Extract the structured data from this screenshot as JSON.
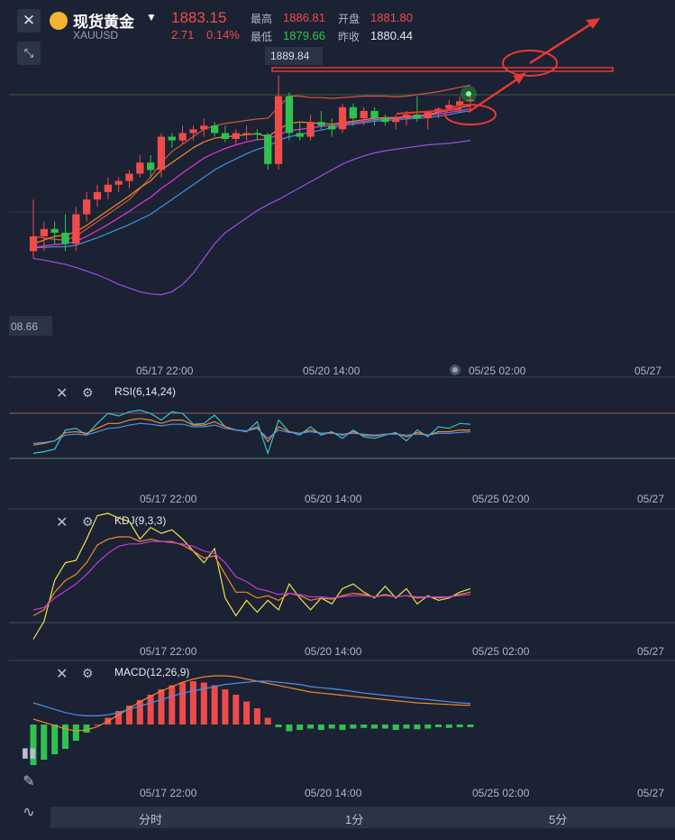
{
  "header": {
    "title": "现货黄金",
    "symbol": "XAUUSD",
    "price": "1883.15",
    "change": "2.71",
    "change_pct": "0.14%",
    "high_label": "最高",
    "high": "1886.81",
    "low_label": "最低",
    "low": "1879.66",
    "open_label": "开盘",
    "open": "1881.80",
    "prev_close_label": "昨收",
    "prev_close": "1880.44"
  },
  "main_chart": {
    "marker_value": "1889.84",
    "left_value": "08.66",
    "time_labels": [
      "05/17 22:00",
      "05/20 14:00",
      "05/25 02:00",
      "05/27"
    ]
  },
  "rsi": {
    "label": "RSI(6,14,24)",
    "time_labels": [
      "05/17 22:00",
      "05/20 14:00",
      "05/25 02:00",
      "05/27"
    ]
  },
  "kdj": {
    "label": "KDJ(9,3,3)",
    "time_labels": [
      "05/17 22:00",
      "05/20 14:00",
      "05/25 02:00",
      "05/27"
    ]
  },
  "macd": {
    "label": "MACD(12,26,9)",
    "time_labels": [
      "05/17 22:00",
      "05/20 14:00",
      "05/25 02:00",
      "05/27"
    ]
  },
  "tabs": [
    "分时",
    "1分",
    "5分"
  ],
  "colors": {
    "up": "#ef4b4b",
    "down": "#2fc24e",
    "background": "#1b2233"
  },
  "chart_data": {
    "type": "candlestick",
    "candles": [
      {
        "o": 1866,
        "h": 1873,
        "l": 1865,
        "c": 1868
      },
      {
        "o": 1868,
        "h": 1870,
        "l": 1866,
        "c": 1869
      },
      {
        "o": 1869,
        "h": 1870,
        "l": 1867,
        "c": 1868.5
      },
      {
        "o": 1868.5,
        "h": 1871,
        "l": 1866,
        "c": 1867
      },
      {
        "o": 1867,
        "h": 1872,
        "l": 1866,
        "c": 1871
      },
      {
        "o": 1871,
        "h": 1874,
        "l": 1870,
        "c": 1873
      },
      {
        "o": 1873,
        "h": 1875,
        "l": 1872,
        "c": 1874
      },
      {
        "o": 1874,
        "h": 1876,
        "l": 1873,
        "c": 1875
      },
      {
        "o": 1875,
        "h": 1876,
        "l": 1874,
        "c": 1875.5
      },
      {
        "o": 1875.5,
        "h": 1877,
        "l": 1874.5,
        "c": 1876.5
      },
      {
        "o": 1876.5,
        "h": 1879,
        "l": 1876,
        "c": 1878
      },
      {
        "o": 1878,
        "h": 1879,
        "l": 1876,
        "c": 1877
      },
      {
        "o": 1877,
        "h": 1882,
        "l": 1876,
        "c": 1881.5
      },
      {
        "o": 1881.5,
        "h": 1882,
        "l": 1880,
        "c": 1881
      },
      {
        "o": 1881,
        "h": 1883,
        "l": 1880.5,
        "c": 1882
      },
      {
        "o": 1882,
        "h": 1883,
        "l": 1881,
        "c": 1882.5
      },
      {
        "o": 1882.5,
        "h": 1884,
        "l": 1881.5,
        "c": 1883
      },
      {
        "o": 1883,
        "h": 1883.5,
        "l": 1881.5,
        "c": 1882
      },
      {
        "o": 1882,
        "h": 1883,
        "l": 1880.8,
        "c": 1881.2
      },
      {
        "o": 1881.2,
        "h": 1882.5,
        "l": 1880.5,
        "c": 1882
      },
      {
        "o": 1882,
        "h": 1883,
        "l": 1881,
        "c": 1882
      },
      {
        "o": 1882,
        "h": 1882.5,
        "l": 1881,
        "c": 1881.8
      },
      {
        "o": 1881.8,
        "h": 1882,
        "l": 1877,
        "c": 1877.8
      },
      {
        "o": 1877.8,
        "h": 1889.8,
        "l": 1877,
        "c": 1887
      },
      {
        "o": 1887,
        "h": 1887.5,
        "l": 1881,
        "c": 1882
      },
      {
        "o": 1882,
        "h": 1883.5,
        "l": 1881,
        "c": 1881.5
      },
      {
        "o": 1881.5,
        "h": 1884.5,
        "l": 1881,
        "c": 1883.5
      },
      {
        "o": 1883.5,
        "h": 1885,
        "l": 1882.5,
        "c": 1883
      },
      {
        "o": 1883,
        "h": 1884,
        "l": 1881.5,
        "c": 1882.5
      },
      {
        "o": 1882.5,
        "h": 1886,
        "l": 1882,
        "c": 1885.5
      },
      {
        "o": 1885.5,
        "h": 1886,
        "l": 1883,
        "c": 1884
      },
      {
        "o": 1884,
        "h": 1885.5,
        "l": 1883,
        "c": 1885
      },
      {
        "o": 1885,
        "h": 1885.5,
        "l": 1883,
        "c": 1884
      },
      {
        "o": 1884,
        "h": 1884.5,
        "l": 1883,
        "c": 1883.5
      },
      {
        "o": 1883.5,
        "h": 1884.5,
        "l": 1882.5,
        "c": 1884
      },
      {
        "o": 1884,
        "h": 1885,
        "l": 1883,
        "c": 1884.5
      },
      {
        "o": 1884.5,
        "h": 1887,
        "l": 1883.5,
        "c": 1884
      },
      {
        "o": 1884,
        "h": 1885,
        "l": 1882.5,
        "c": 1884.8
      },
      {
        "o": 1884.8,
        "h": 1885.5,
        "l": 1884,
        "c": 1885.3
      },
      {
        "o": 1885.3,
        "h": 1886.5,
        "l": 1885,
        "c": 1885.8
      },
      {
        "o": 1885.8,
        "h": 1887,
        "l": 1885.5,
        "c": 1886.3
      },
      {
        "o": 1886.3,
        "h": 1887,
        "l": 1885,
        "c": 1886.5
      }
    ],
    "boll_upper": [
      1868,
      1867.8,
      1867.6,
      1867.5,
      1868,
      1869,
      1870,
      1871,
      1872,
      1873,
      1874.5,
      1876,
      1878,
      1879.5,
      1880.5,
      1881.5,
      1882.5,
      1883,
      1883.3,
      1883.5,
      1883.7,
      1883.9,
      1884,
      1885.5,
      1887,
      1887,
      1886.8,
      1886.8,
      1886.7,
      1886.8,
      1886.9,
      1887,
      1887,
      1887,
      1886.9,
      1887,
      1887.2,
      1887.4,
      1887.6,
      1887.9,
      1888.2,
      1888.5
    ],
    "boll_mid": [
      1866.5,
      1866.5,
      1866.6,
      1866.6,
      1866.8,
      1867.3,
      1867.8,
      1868.4,
      1869,
      1869.6,
      1870.3,
      1871,
      1872,
      1873,
      1874,
      1875,
      1876,
      1877,
      1877.8,
      1878.5,
      1879.2,
      1879.8,
      1880.2,
      1881,
      1881.5,
      1881.8,
      1882.1,
      1882.4,
      1882.7,
      1883,
      1883.2,
      1883.4,
      1883.6,
      1883.7,
      1883.8,
      1883.9,
      1884,
      1884.1,
      1884.3,
      1884.5,
      1884.8,
      1885
    ],
    "boll_lower": [
      1865,
      1864.8,
      1864.5,
      1864.2,
      1863.8,
      1863.3,
      1862.8,
      1862.2,
      1861.5,
      1861,
      1860.5,
      1860.2,
      1860.1,
      1860.5,
      1861.5,
      1863,
      1865,
      1867,
      1868.5,
      1869.5,
      1870.5,
      1871.5,
      1872.3,
      1873,
      1873.8,
      1874.6,
      1875.4,
      1876.2,
      1877,
      1877.8,
      1878.4,
      1878.9,
      1879.3,
      1879.6,
      1879.8,
      1880,
      1880.2,
      1880.4,
      1880.5,
      1880.6,
      1880.8,
      1881
    ],
    "ma_orange": [
      1867,
      1867.5,
      1868,
      1868.2,
      1868.6,
      1869.5,
      1870.5,
      1871.5,
      1872.5,
      1873.5,
      1874.6,
      1875.5,
      1877,
      1878,
      1879,
      1880,
      1880.8,
      1881.3,
      1881.5,
      1881.6,
      1881.8,
      1881.9,
      1881.5,
      1882.5,
      1883.3,
      1883.5,
      1883.4,
      1883.3,
      1883.2,
      1883.4,
      1883.6,
      1883.8,
      1884,
      1884.1,
      1884.1,
      1884.2,
      1884.3,
      1884.5,
      1884.8,
      1885.1,
      1885.4,
      1885.7
    ],
    "ma_magenta": [
      1866.5,
      1866.7,
      1866.9,
      1867,
      1867.3,
      1868,
      1868.8,
      1869.6,
      1870.5,
      1871.4,
      1872.4,
      1873.3,
      1874.5,
      1875.5,
      1876.6,
      1877.6,
      1878.6,
      1879.3,
      1879.9,
      1880.4,
      1880.8,
      1881.1,
      1881.2,
      1881.8,
      1882.3,
      1882.5,
      1882.7,
      1882.9,
      1883,
      1883.2,
      1883.4,
      1883.6,
      1883.8,
      1883.9,
      1884,
      1884.1,
      1884.2,
      1884.4,
      1884.6,
      1884.8,
      1885,
      1885.3
    ],
    "rsi_lines": [
      [
        30,
        32,
        35,
        58,
        60,
        52,
        66,
        78,
        75,
        80,
        82,
        78,
        70,
        80,
        78,
        65,
        66,
        76,
        62,
        58,
        56,
        68,
        30,
        70,
        56,
        52,
        62,
        52,
        56,
        48,
        58,
        50,
        48,
        52,
        55,
        45,
        58,
        50,
        62,
        60,
        66,
        65
      ],
      [
        40,
        42,
        45,
        55,
        56,
        54,
        60,
        66,
        66,
        70,
        72,
        70,
        66,
        70,
        70,
        64,
        64,
        68,
        62,
        58,
        57,
        62,
        44,
        62,
        56,
        54,
        58,
        54,
        55,
        52,
        56,
        52,
        51,
        53,
        54,
        50,
        55,
        52,
        56,
        56,
        58,
        58
      ],
      [
        42,
        43,
        45,
        52,
        53,
        52,
        56,
        60,
        61,
        64,
        66,
        65,
        63,
        65,
        65,
        62,
        62,
        64,
        60,
        58,
        57,
        60,
        48,
        58,
        55,
        54,
        56,
        54,
        54,
        53,
        54,
        53,
        52,
        53,
        53,
        52,
        53,
        52,
        54,
        54,
        55,
        56
      ]
    ],
    "kdj_lines": {
      "j": [
        5,
        20,
        55,
        70,
        72,
        90,
        110,
        112,
        108,
        105,
        90,
        100,
        95,
        98,
        90,
        80,
        70,
        82,
        40,
        25,
        38,
        28,
        38,
        30,
        52,
        40,
        30,
        40,
        35,
        48,
        52,
        45,
        40,
        50,
        40,
        48,
        35,
        42,
        38,
        40,
        45,
        48
      ],
      "k": [
        25,
        30,
        45,
        55,
        60,
        70,
        85,
        90,
        92,
        92,
        88,
        90,
        88,
        88,
        85,
        80,
        74,
        76,
        60,
        45,
        45,
        40,
        42,
        38,
        44,
        42,
        38,
        40,
        39,
        42,
        44,
        43,
        41,
        43,
        41,
        42,
        40,
        41,
        40,
        41,
        43,
        45
      ],
      "d": [
        30,
        32,
        40,
        46,
        52,
        60,
        70,
        78,
        84,
        86,
        86,
        88,
        88,
        87,
        86,
        84,
        80,
        78,
        70,
        58,
        54,
        48,
        46,
        43,
        44,
        43,
        41,
        41,
        40,
        41,
        42,
        42,
        41,
        42,
        41,
        42,
        41,
        41,
        41,
        41,
        42,
        43
      ]
    },
    "macd": {
      "hist": [
        -3,
        -2.6,
        -2.2,
        -1.8,
        -1.2,
        -0.6,
        0,
        0.5,
        1,
        1.4,
        1.8,
        2.2,
        2.6,
        2.9,
        3.1,
        3.2,
        3.1,
        2.9,
        2.6,
        2.2,
        1.7,
        1.2,
        0.5,
        -0.2,
        -0.5,
        -0.4,
        -0.3,
        -0.4,
        -0.3,
        -0.4,
        -0.3,
        -0.25,
        -0.3,
        -0.3,
        -0.4,
        -0.3,
        -0.35,
        -0.3,
        -0.2,
        -0.25,
        -0.2,
        -0.2
      ],
      "dif": [
        0.5,
        0.2,
        -0.1,
        -0.4,
        -0.6,
        -0.5,
        -0.2,
        0.3,
        0.9,
        1.5,
        2.1,
        2.6,
        3.1,
        3.5,
        3.9,
        4.2,
        4.4,
        4.5,
        4.5,
        4.4,
        4.2,
        4,
        3.8,
        3.6,
        3.4,
        3.2,
        3,
        2.9,
        2.8,
        2.7,
        2.6,
        2.5,
        2.4,
        2.3,
        2.2,
        2.1,
        2.0,
        1.95,
        1.9,
        1.85,
        1.8,
        1.78
      ],
      "dea": [
        2,
        1.7,
        1.4,
        1.1,
        0.9,
        0.8,
        0.8,
        0.9,
        1.1,
        1.4,
        1.7,
        2,
        2.3,
        2.6,
        2.9,
        3.1,
        3.3,
        3.5,
        3.7,
        3.8,
        3.9,
        4,
        4,
        3.9,
        3.8,
        3.7,
        3.5,
        3.4,
        3.3,
        3.2,
        3.05,
        2.9,
        2.8,
        2.7,
        2.6,
        2.5,
        2.4,
        2.3,
        2.2,
        2.1,
        2.0,
        1.95
      ]
    }
  }
}
